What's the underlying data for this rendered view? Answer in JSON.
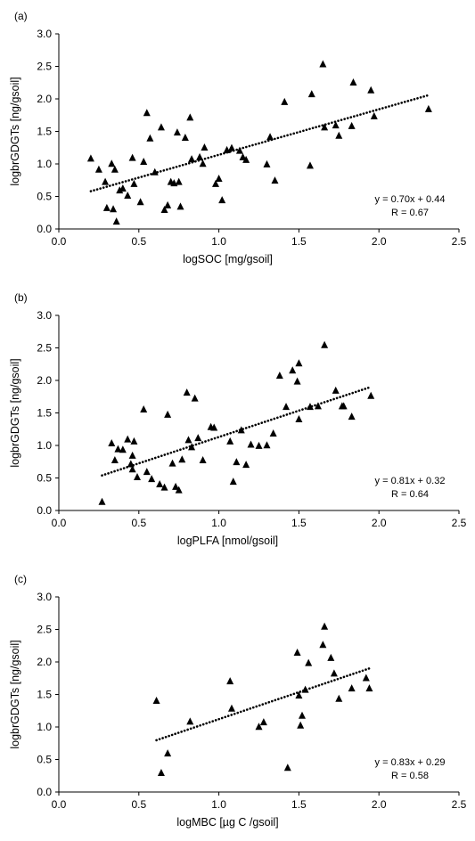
{
  "chart_data": [
    {
      "type": "scatter",
      "panel_label": "(a)",
      "xlabel": "logSOC [mg/gsoil]",
      "ylabel": "logbrGDGTs [ng/gsoil]",
      "xlim": [
        0.0,
        2.5
      ],
      "ylim": [
        0.0,
        3.0
      ],
      "xticks": [
        "0.0",
        "0.5",
        "1.0",
        "1.5",
        "2.0",
        "2.5"
      ],
      "yticks": [
        "0.0",
        "0.5",
        "1.0",
        "1.5",
        "2.0",
        "2.5",
        "3.0"
      ],
      "grid": false,
      "trendline": {
        "slope": 0.7,
        "intercept": 0.44,
        "x_range": [
          0.2,
          2.31
        ],
        "style": "dotted"
      },
      "equation": "y = 0.70x + 0.44",
      "r_text": "R = 0.67",
      "x": [
        0.2,
        0.25,
        0.29,
        0.3,
        0.33,
        0.34,
        0.35,
        0.36,
        0.38,
        0.4,
        0.43,
        0.46,
        0.47,
        0.51,
        0.53,
        0.55,
        0.57,
        0.6,
        0.64,
        0.66,
        0.68,
        0.7,
        0.72,
        0.74,
        0.75,
        0.76,
        0.79,
        0.82,
        0.83,
        0.88,
        0.9,
        0.91,
        0.98,
        1.0,
        1.02,
        1.05,
        1.08,
        1.13,
        1.15,
        1.17,
        1.3,
        1.32,
        1.35,
        1.41,
        1.57,
        1.58,
        1.65,
        1.66,
        1.73,
        1.75,
        1.83,
        1.84,
        1.95,
        1.97,
        2.31
      ],
      "y": [
        1.08,
        0.91,
        0.72,
        0.32,
        1.0,
        0.3,
        0.91,
        0.11,
        0.59,
        0.62,
        0.51,
        1.09,
        0.69,
        0.41,
        1.03,
        1.78,
        1.39,
        0.87,
        1.56,
        0.29,
        0.36,
        0.72,
        0.7,
        1.48,
        0.72,
        0.34,
        1.4,
        1.71,
        1.07,
        1.1,
        1.0,
        1.25,
        0.69,
        0.77,
        0.44,
        1.21,
        1.24,
        1.2,
        1.1,
        1.06,
        0.99,
        1.41,
        0.74,
        1.95,
        0.97,
        2.07,
        2.53,
        1.56,
        1.59,
        1.43,
        1.58,
        2.25,
        2.13,
        1.73,
        1.84
      ]
    },
    {
      "type": "scatter",
      "panel_label": "(b)",
      "xlabel": "logPLFA [nmol/gsoil]",
      "ylabel": "logbrGDGTs [ng/gsoil]",
      "xlim": [
        0.0,
        2.5
      ],
      "ylim": [
        0.0,
        3.0
      ],
      "xticks": [
        "0.0",
        "0.5",
        "1.0",
        "1.5",
        "2.0",
        "2.5"
      ],
      "yticks": [
        "0.0",
        "0.5",
        "1.0",
        "1.5",
        "2.0",
        "2.5",
        "3.0"
      ],
      "grid": false,
      "trendline": {
        "slope": 0.81,
        "intercept": 0.32,
        "x_range": [
          0.27,
          1.95
        ],
        "style": "dotted"
      },
      "equation": "y = 0.81x + 0.32",
      "r_text": "R = 0.64",
      "x": [
        0.27,
        0.33,
        0.35,
        0.37,
        0.4,
        0.43,
        0.45,
        0.46,
        0.46,
        0.47,
        0.49,
        0.53,
        0.55,
        0.58,
        0.63,
        0.66,
        0.68,
        0.71,
        0.73,
        0.75,
        0.77,
        0.8,
        0.81,
        0.83,
        0.85,
        0.87,
        0.9,
        0.95,
        0.97,
        1.07,
        1.09,
        1.11,
        1.14,
        1.17,
        1.2,
        1.25,
        1.3,
        1.34,
        1.38,
        1.42,
        1.46,
        1.49,
        1.5,
        1.5,
        1.57,
        1.62,
        1.66,
        1.73,
        1.77,
        1.78,
        1.83,
        1.95
      ],
      "y": [
        0.13,
        1.03,
        0.77,
        0.94,
        0.93,
        1.09,
        0.71,
        0.84,
        0.63,
        1.06,
        0.51,
        1.55,
        0.59,
        0.48,
        0.4,
        0.35,
        1.47,
        0.72,
        0.36,
        0.31,
        0.78,
        1.81,
        1.08,
        0.97,
        1.72,
        1.11,
        0.77,
        1.28,
        1.27,
        1.06,
        0.44,
        0.74,
        1.23,
        0.7,
        1.01,
        0.99,
        1.0,
        1.18,
        2.07,
        1.59,
        2.15,
        1.98,
        2.26,
        1.4,
        1.59,
        1.6,
        2.54,
        1.84,
        1.6,
        1.6,
        1.44,
        1.76
      ]
    },
    {
      "type": "scatter",
      "panel_label": "(c)",
      "xlabel": "logMBC [µg C /gsoil]",
      "ylabel": "logbrGDGTs [ng/gsoil]",
      "xlim": [
        0.0,
        2.5
      ],
      "ylim": [
        0.0,
        3.0
      ],
      "xticks": [
        "0.0",
        "0.5",
        "1.0",
        "1.5",
        "2.0",
        "2.5"
      ],
      "yticks": [
        "0.0",
        "0.5",
        "1.0",
        "1.5",
        "2.0",
        "2.5",
        "3.0"
      ],
      "grid": false,
      "trendline": {
        "slope": 0.83,
        "intercept": 0.29,
        "x_range": [
          0.61,
          1.94
        ],
        "style": "dotted"
      },
      "equation": "y = 0.83x + 0.29",
      "r_text": "R = 0.58",
      "x": [
        0.61,
        0.64,
        0.68,
        0.82,
        1.07,
        1.08,
        1.25,
        1.28,
        1.43,
        1.49,
        1.5,
        1.51,
        1.52,
        1.54,
        1.56,
        1.65,
        1.66,
        1.7,
        1.72,
        1.75,
        1.83,
        1.92,
        1.94
      ],
      "y": [
        1.4,
        0.29,
        0.59,
        1.08,
        1.7,
        1.28,
        1.0,
        1.07,
        0.37,
        2.14,
        1.48,
        1.02,
        1.17,
        1.57,
        1.98,
        2.26,
        2.54,
        2.06,
        1.82,
        1.43,
        1.59,
        1.75,
        1.59
      ]
    }
  ]
}
